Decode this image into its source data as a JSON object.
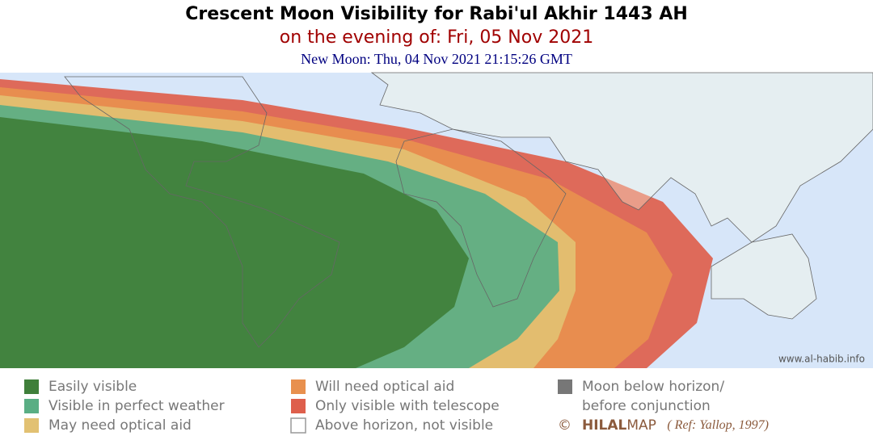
{
  "header": {
    "title": "Crescent Moon Visibility for Rabi'ul Akhir 1443 AH",
    "subtitle": "on the evening of: Fri, 05 Nov 2021",
    "new_moon": "New Moon: Thu, 04 Nov 2021 21:15:26 GMT"
  },
  "watermark": "www.al-habib.info",
  "legend": [
    {
      "label": "Easily visible",
      "color": "#3f7f3a"
    },
    {
      "label": "Visible in perfect weather",
      "color": "#5aae84"
    },
    {
      "label": "May need optical aid",
      "color": "#e2c172"
    },
    {
      "label": "Will need optical aid",
      "color": "#e8904e"
    },
    {
      "label": "Only visible with telescope",
      "color": "#de5f4c"
    },
    {
      "label": "Above horizon, not visible",
      "color": "#ffffff"
    },
    {
      "lines": [
        "Moon below horizon/",
        "before conjunction"
      ],
      "color": "#777777"
    }
  ],
  "credit": {
    "symbol": "©",
    "brand_bold": "HILAL",
    "brand": "MAP",
    "reference": "( Ref: Yallop, 1997)"
  }
}
